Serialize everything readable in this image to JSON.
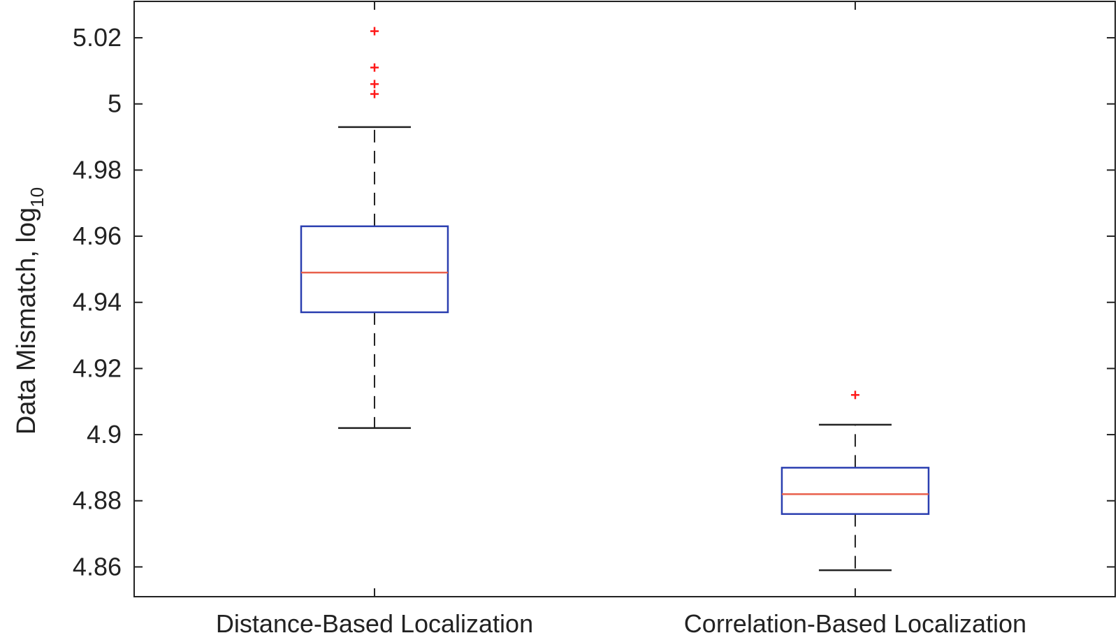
{
  "chart_data": {
    "type": "box",
    "ylabel": "Data Mismatch, log",
    "ylabel_subscript": "10",
    "ylim": [
      4.851,
      5.031
    ],
    "yticks": [
      4.86,
      4.88,
      4.9,
      4.92,
      4.94,
      4.96,
      4.98,
      5,
      5.02
    ],
    "ytick_labels": [
      "4.86",
      "4.88",
      "4.9",
      "4.92",
      "4.94",
      "4.96",
      "4.98",
      "5",
      "5.02"
    ],
    "categories": [
      "Distance-Based Localization",
      "Correlation-Based Localization"
    ],
    "boxes": [
      {
        "name": "Distance-Based Localization",
        "whisker_low": 4.902,
        "q1": 4.937,
        "median": 4.949,
        "q3": 4.963,
        "whisker_high": 4.993,
        "outliers": [
          5.022,
          5.011,
          5.006,
          5.003
        ]
      },
      {
        "name": "Correlation-Based Localization",
        "whisker_low": 4.859,
        "q1": 4.876,
        "median": 4.882,
        "q3": 4.89,
        "whisker_high": 4.903,
        "outliers": [
          4.912
        ]
      }
    ],
    "grid": false,
    "colors": {
      "box": "#2b3fb0",
      "median": "#e8604c",
      "whisker": "#222222",
      "outlier": "#ff1a1a"
    }
  }
}
